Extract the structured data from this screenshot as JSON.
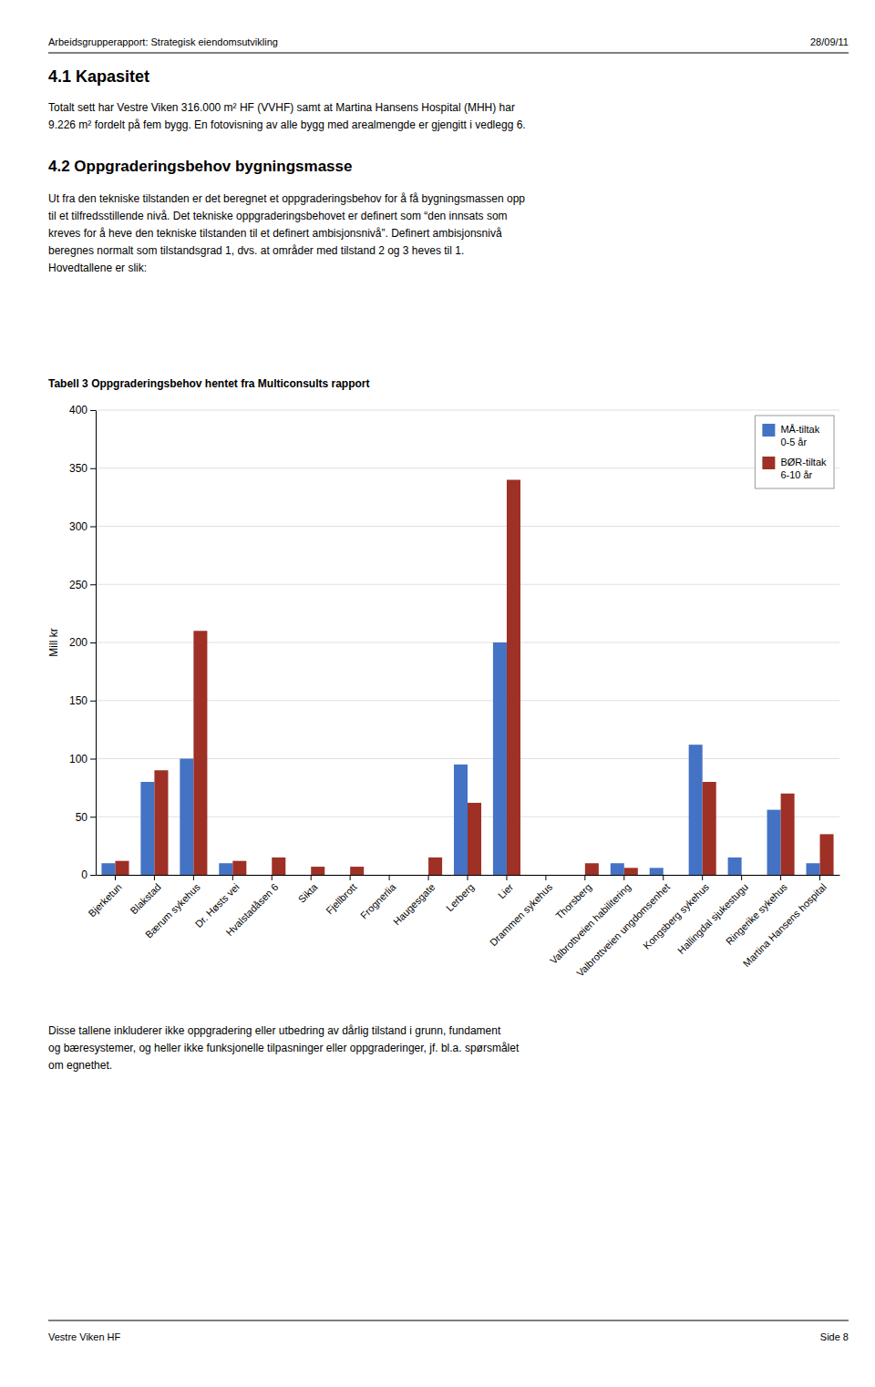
{
  "header_left": "Arbeidsgrupperapport: Strategisk eiendomsutvikling",
  "header_right": "28/09/11",
  "section_title": "4.1  Kapasitet",
  "para1": [
    "Totalt sett har Vestre Viken 316.000 m² HF (VVHF) samt at Martina Hansens Hospital (MHH) har",
    "9.226 m² fordelt på fem bygg. En fotovisning av alle bygg med arealmengde er gjengitt i vedlegg 6."
  ],
  "section2_title": "4.2  Oppgraderingsbehov bygningsmasse",
  "para2": [
    "Ut fra den tekniske tilstanden er det beregnet et oppgraderingsbehov for å få bygningsmassen opp",
    "til et tilfredsstillende nivå. Det tekniske oppgraderingsbehovet er definert som “den innsats som",
    "kreves for å heve den tekniske tilstanden til et definert ambisjonsnivå”. Definert ambisjonsnivå",
    "beregnes normalt som tilstandsgrad 1, dvs. at områder med tilstand 2 og 3 heves til 1.",
    "Hovedtallene er slik:"
  ],
  "chart_data": {
    "type": "bar",
    "title": "Tabell 3 Oppgraderingsbehov hentet fra Multiconsults rapport",
    "categories": [
      "Bjerketun",
      "Blakstad",
      "Bærum sykehus",
      "Dr. Høsts vei",
      "Hvalstadåsen 6",
      "Sikta",
      "Fjellbrott",
      "Frognerlia",
      "Haugesgate",
      "Lerberg",
      "Lier",
      "Drammen sykehus",
      "Thorsberg",
      "Valbrottveien habilitering",
      "Valbrottveien ungdomsenhet",
      "Kongsberg sykehus",
      "Hallingdal sjukestugu",
      "Ringerike sykehus",
      "Martina Hansens hospital"
    ],
    "series": [
      {
        "name": "MÅ-tiltak\n0-5 år",
        "color": "#4472C4",
        "values": [
          10,
          80,
          100,
          10,
          0,
          0,
          0,
          0,
          0,
          95,
          200,
          0,
          0,
          10,
          6,
          112,
          15,
          56,
          10
        ]
      },
      {
        "name": "BØR-tiltak\n6-10 år",
        "color": "#9E3025",
        "values": [
          12,
          90,
          210,
          12,
          15,
          7,
          7,
          0,
          15,
          62,
          340,
          0,
          10,
          6,
          0,
          80,
          0,
          70,
          35
        ]
      }
    ],
    "ylabel": "Mill kr",
    "ylim": [
      0,
      400
    ],
    "yticks": [
      0,
      50,
      100,
      150,
      200,
      250,
      300,
      350,
      400
    ],
    "grid": true,
    "legend": "upper right"
  },
  "footer_para": [
    "Disse tallene inkluderer ikke oppgradering eller utbedring av dårlig tilstand i grunn, fundament",
    "og bæresystemer, og heller ikke funksjonelle tilpasninger eller oppgraderinger, jf. bl.a. spørsmålet",
    "om egnethet."
  ],
  "footer_left": "Vestre Viken HF",
  "footer_right": "Side 8"
}
